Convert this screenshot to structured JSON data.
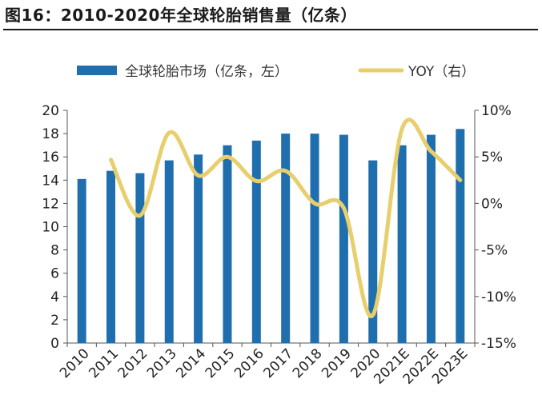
{
  "title": "图16：2010-2020年全球轮胎销售量（亿条）",
  "chart_data": {
    "type": "bar",
    "categories": [
      "2010",
      "2011",
      "2012",
      "2013",
      "2014",
      "2015",
      "2016",
      "2017",
      "2018",
      "2019",
      "2020",
      "2021E",
      "2022E",
      "2023E"
    ],
    "series": [
      {
        "name": "全球轮胎市场（亿条，左）",
        "type": "bar",
        "axis": "left",
        "color": "#1f6fae",
        "values": [
          14.1,
          14.8,
          14.6,
          15.7,
          16.2,
          17.0,
          17.4,
          18.0,
          18.0,
          17.9,
          15.7,
          17.0,
          17.9,
          18.4
        ]
      },
      {
        "name": "YOY（右）",
        "type": "line",
        "axis": "right",
        "color": "#e8cf6d",
        "smooth": true,
        "values": [
          null,
          4.7,
          -1.3,
          7.6,
          3.0,
          5.0,
          2.4,
          3.5,
          0.0,
          -0.5,
          -12.0,
          8.0,
          5.6,
          2.5
        ]
      }
    ],
    "y_left": {
      "min": 0,
      "max": 20,
      "step": 2,
      "ticks": [
        "0",
        "2",
        "4",
        "6",
        "8",
        "10",
        "12",
        "14",
        "16",
        "18",
        "20"
      ]
    },
    "y_right": {
      "min": -15,
      "max": 10,
      "step": 5,
      "ticks": [
        "-15%",
        "-10%",
        "-5%",
        "0%",
        "5%",
        "10%"
      ]
    },
    "legend": {
      "position": "top",
      "items": [
        "全球轮胎市场（亿条，左）",
        "YOY（右）"
      ]
    },
    "grid": false
  }
}
